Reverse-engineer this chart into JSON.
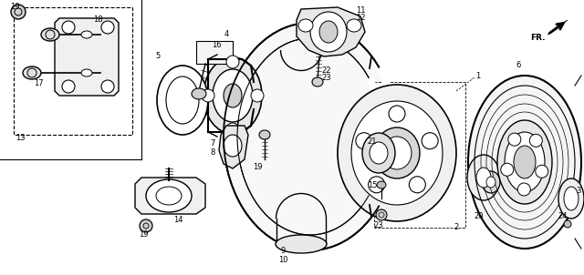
{
  "background_color": "#ffffff",
  "line_color": "#000000",
  "fig_width": 6.4,
  "fig_height": 3.02,
  "dpi": 100
}
